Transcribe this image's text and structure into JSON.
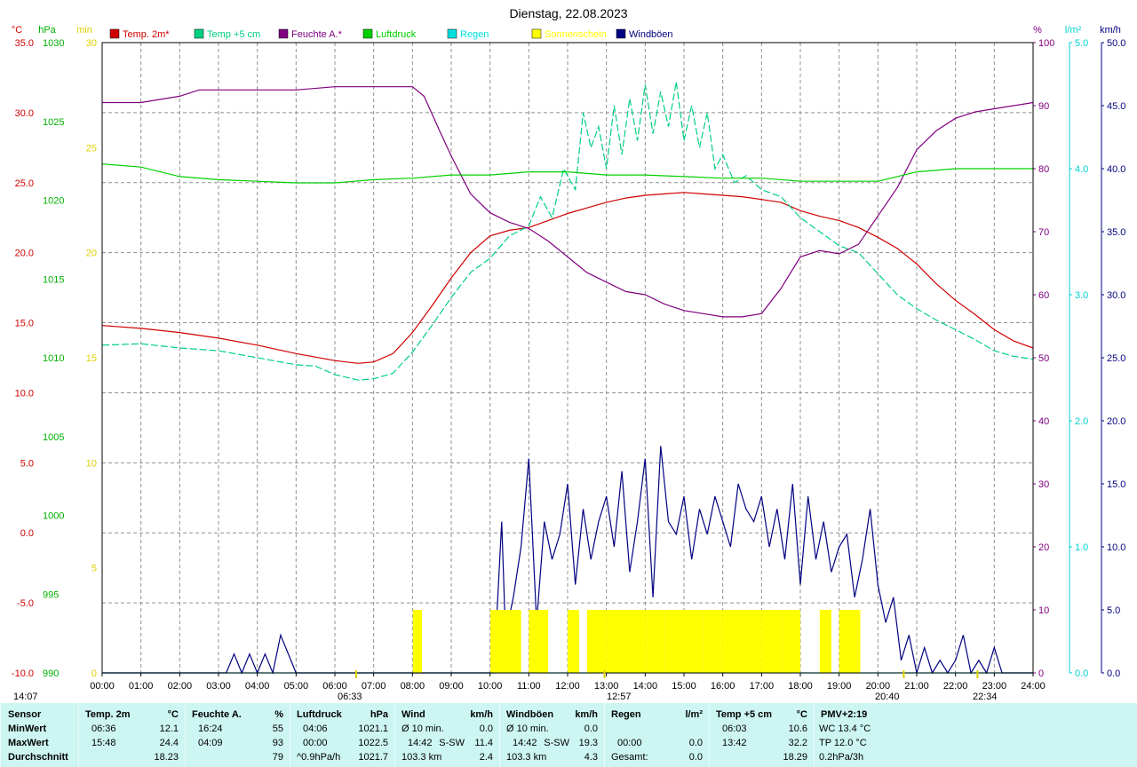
{
  "chart_data": {
    "type": "line",
    "title": "Dienstag, 22.08.2023",
    "x_ticks": [
      "00:00",
      "01:00",
      "02:00",
      "03:00",
      "04:00",
      "05:00",
      "06:00",
      "07:00",
      "08:00",
      "09:00",
      "10:00",
      "11:00",
      "12:00",
      "13:00",
      "14:00",
      "15:00",
      "16:00",
      "17:00",
      "18:00",
      "19:00",
      "20:00",
      "21:00",
      "22:00",
      "23:00",
      "24:00"
    ],
    "axes": {
      "temp": {
        "unit": "°C",
        "color": "#d00000",
        "min": -10,
        "max": 35,
        "ticks": [
          "35.0",
          "30.0",
          "25.0",
          "20.0",
          "15.0",
          "10.0",
          "5.0",
          "0.0",
          "-5.0",
          "-10.0"
        ]
      },
      "pressure": {
        "unit": "hPa",
        "color": "#00b000",
        "min": 990,
        "max": 1030,
        "ticks": [
          "1030",
          "1025",
          "1020",
          "1015",
          "1010",
          "1005",
          "1000",
          "995",
          "990"
        ]
      },
      "sunshine": {
        "unit": "min",
        "color": "#e0d000",
        "min": 0,
        "max": 30,
        "ticks": [
          "30",
          "25",
          "20",
          "15",
          "10",
          "5",
          "0"
        ]
      },
      "humidity": {
        "unit": "%",
        "color": "#800080",
        "min": 0,
        "max": 100,
        "ticks": [
          "100",
          "90",
          "80",
          "70",
          "60",
          "50",
          "40",
          "30",
          "20",
          "10",
          "0"
        ]
      },
      "rain": {
        "unit": "l/m²",
        "color": "#00d0d0",
        "min": 0,
        "max": 5,
        "ticks": [
          "5.0",
          "4.0",
          "3.0",
          "2.0",
          "1.0",
          "0.0"
        ]
      },
      "wind": {
        "unit": "km/h",
        "color": "#000080",
        "min": 0,
        "max": 50,
        "ticks": [
          "50.0",
          "45.0",
          "40.0",
          "35.0",
          "30.0",
          "25.0",
          "20.0",
          "15.0",
          "10.0",
          "5.0",
          "0.0"
        ]
      }
    },
    "legend": [
      {
        "name": "Temp. 2m*",
        "color": "#d00000"
      },
      {
        "name": "Temp +5 cm",
        "color": "#00d080"
      },
      {
        "name": "Feuchte A.*",
        "color": "#800080"
      },
      {
        "name": "Luftdruck",
        "color": "#00d000"
      },
      {
        "name": "Regen",
        "color": "#00e0e0"
      },
      {
        "name": "Sonnenschein",
        "color": "#ffff00"
      },
      {
        "name": "Windböen",
        "color": "#000080"
      }
    ],
    "series": [
      {
        "name": "Temp. 2m*",
        "axis": "temp",
        "color": "#d00000",
        "x": [
          0,
          1,
          2,
          3,
          4,
          5,
          6,
          6.6,
          7,
          7.5,
          8,
          8.5,
          9,
          9.5,
          10,
          10.5,
          11,
          11.5,
          12,
          12.5,
          13,
          13.5,
          14,
          14.5,
          15,
          15.5,
          16,
          16.5,
          17,
          17.5,
          18,
          18.5,
          19,
          19.5,
          20,
          20.5,
          21,
          21.5,
          22,
          22.5,
          23,
          23.5,
          24
        ],
        "values": [
          14.8,
          14.6,
          14.3,
          13.9,
          13.4,
          12.8,
          12.3,
          12.1,
          12.2,
          12.8,
          14.3,
          16.2,
          18.2,
          20.0,
          21.2,
          21.6,
          21.8,
          22.3,
          22.8,
          23.2,
          23.6,
          23.9,
          24.1,
          24.2,
          24.3,
          24.2,
          24.1,
          24.0,
          23.8,
          23.6,
          23.0,
          22.6,
          22.3,
          21.8,
          21.1,
          20.3,
          19.2,
          17.8,
          16.6,
          15.6,
          14.5,
          13.7,
          13.2
        ]
      },
      {
        "name": "Temp +5 cm",
        "axis": "temp",
        "color": "#00d080",
        "x": [
          0,
          1,
          2,
          3,
          4,
          5,
          5.5,
          6,
          6.6,
          7,
          7.5,
          8,
          8.5,
          9,
          9.5,
          10,
          10.5,
          11,
          11.3,
          11.6,
          11.9,
          12.2,
          12.4,
          12.6,
          12.8,
          13,
          13.2,
          13.4,
          13.6,
          13.8,
          14,
          14.2,
          14.4,
          14.6,
          14.8,
          15,
          15.2,
          15.4,
          15.6,
          15.8,
          16,
          16.3,
          16.6,
          17,
          17.5,
          18,
          18.5,
          19,
          19.5,
          20,
          20.5,
          21,
          21.5,
          22,
          22.5,
          23,
          23.5,
          24
        ],
        "values": [
          13.4,
          13.5,
          13.2,
          13.0,
          12.5,
          12.0,
          11.9,
          11.3,
          10.9,
          11.0,
          11.4,
          12.9,
          14.8,
          16.8,
          18.6,
          19.6,
          21.2,
          21.9,
          24.0,
          22.5,
          26.0,
          24.5,
          30.0,
          27.5,
          29.0,
          26.0,
          30.5,
          27.0,
          31.0,
          28.0,
          32.0,
          28.5,
          31.5,
          29.0,
          32.2,
          28.0,
          30.5,
          27.5,
          30.0,
          26.0,
          27.0,
          25.0,
          25.5,
          24.5,
          24.0,
          22.5,
          21.5,
          20.5,
          20.0,
          18.5,
          17.0,
          16.0,
          15.2,
          14.5,
          13.8,
          13.0,
          12.6,
          12.4
        ]
      },
      {
        "name": "Feuchte A.*",
        "axis": "humidity",
        "color": "#800080",
        "x": [
          0,
          1,
          2,
          2.5,
          3,
          4,
          5,
          6,
          7,
          8,
          8.3,
          8.7,
          9,
          9.5,
          10,
          10.5,
          11,
          11.5,
          12,
          12.5,
          13,
          13.5,
          14,
          14.5,
          15,
          15.5,
          16,
          16.5,
          17,
          17.5,
          18,
          18.5,
          19,
          19.5,
          20,
          20.5,
          21,
          21.5,
          22,
          22.5,
          23,
          23.5,
          24
        ],
        "values": [
          90.5,
          90.5,
          91.5,
          92.5,
          92.5,
          92.5,
          92.5,
          93.0,
          93.0,
          93.0,
          91.5,
          86.0,
          82.0,
          76.0,
          73.0,
          71.5,
          70.5,
          68.5,
          66.0,
          63.5,
          62.0,
          60.5,
          60.0,
          58.5,
          57.5,
          57.0,
          56.5,
          56.5,
          57.0,
          61.0,
          66.0,
          67.0,
          66.5,
          68.0,
          72.5,
          77.0,
          83.0,
          86.0,
          88.0,
          89.0,
          89.5,
          90.0,
          90.5
        ]
      },
      {
        "name": "Luftdruck",
        "axis": "pressure",
        "color": "#00d000",
        "x": [
          0,
          1,
          2,
          3,
          4,
          5,
          6,
          7,
          8,
          9,
          10,
          11,
          12,
          13,
          14,
          15,
          16,
          17,
          18,
          19,
          20,
          20.5,
          21,
          22,
          23,
          24
        ],
        "values": [
          1022.3,
          1022.1,
          1021.5,
          1021.3,
          1021.2,
          1021.1,
          1021.1,
          1021.3,
          1021.4,
          1021.6,
          1021.6,
          1021.8,
          1021.8,
          1021.6,
          1021.6,
          1021.5,
          1021.4,
          1021.4,
          1021.2,
          1021.2,
          1021.2,
          1021.5,
          1021.8,
          1022.0,
          1022.0,
          1022.0
        ]
      },
      {
        "name": "Regen",
        "axis": "rain",
        "color": "#00e0e0",
        "x": [
          0,
          24
        ],
        "values": [
          0,
          0
        ]
      },
      {
        "name": "Windböen",
        "axis": "wind",
        "color": "#000080",
        "x": [
          0,
          3.2,
          3.4,
          3.6,
          3.8,
          4.0,
          4.2,
          4.4,
          4.6,
          5,
          9,
          10.1,
          10.3,
          10.4,
          10.6,
          10.8,
          11.0,
          11.2,
          11.4,
          11.6,
          11.8,
          12.0,
          12.2,
          12.4,
          12.6,
          12.8,
          13.0,
          13.2,
          13.4,
          13.6,
          13.8,
          14.0,
          14.2,
          14.4,
          14.6,
          14.8,
          15.0,
          15.2,
          15.4,
          15.6,
          15.8,
          16.0,
          16.2,
          16.4,
          16.6,
          16.8,
          17.0,
          17.2,
          17.4,
          17.6,
          17.8,
          18.0,
          18.2,
          18.4,
          18.6,
          18.8,
          19.0,
          19.2,
          19.4,
          19.6,
          19.8,
          20.0,
          20.2,
          20.4,
          20.6,
          20.8,
          21.0,
          21.2,
          21.4,
          21.6,
          21.8,
          22.0,
          22.2,
          22.4,
          22.6,
          22.8,
          23.0,
          23.2,
          23.4,
          24
        ],
        "values": [
          0,
          0,
          1.5,
          0,
          1.5,
          0,
          1.5,
          0,
          3,
          0,
          0,
          0,
          12,
          3,
          6,
          10,
          17,
          4,
          12,
          9,
          11,
          15,
          7,
          13,
          9,
          12,
          14,
          10,
          16,
          8,
          12,
          17,
          6,
          18,
          12,
          11,
          14,
          9,
          13,
          11,
          14,
          12,
          10,
          15,
          13,
          12,
          14,
          10,
          13,
          9,
          15,
          7,
          14,
          9,
          12,
          8,
          10,
          11,
          6,
          9,
          13,
          7,
          4,
          6,
          1,
          3,
          0,
          2,
          0,
          1,
          0,
          1,
          3,
          0,
          1,
          0,
          2,
          0,
          0,
          0
        ]
      },
      {
        "name": "Sonnenschein",
        "axis": "sunshine",
        "color": "#ffff00",
        "x": [
          0,
          8.0,
          8.01,
          8.2,
          8.21,
          10.0,
          10.01,
          10.5,
          10.8,
          11.0,
          11.3,
          11.5,
          12.0,
          12.3,
          12.5,
          13.0,
          13.5,
          14.0,
          14.5,
          15.0,
          15.5,
          16.0,
          16.5,
          17.0,
          17.5,
          18.0,
          18.5,
          18.8,
          19.0,
          19.5,
          19.51,
          24
        ],
        "values": [
          0,
          0,
          3,
          3,
          0,
          0,
          3,
          3,
          0,
          3,
          3,
          0,
          3,
          0,
          3,
          3,
          3,
          3,
          3,
          3,
          3,
          3,
          3,
          3,
          3,
          0,
          3,
          0,
          3,
          3,
          0,
          0
        ]
      }
    ],
    "axis_markers": [
      {
        "label": "14:07",
        "x_time": "14:07"
      },
      {
        "label": "06:33",
        "x_time": "06:33"
      },
      {
        "label": "12:57",
        "x_time": "12:57"
      },
      {
        "label": "20:40",
        "x_time": "20:40"
      },
      {
        "label": "22:34",
        "x_time": "22:34"
      }
    ]
  },
  "stats": {
    "columns": [
      {
        "header": "Sensor",
        "unit": "",
        "rows": [
          {
            "a": "MinWert",
            "b": "",
            "c": ""
          },
          {
            "a": "MaxWert",
            "b": "",
            "c": ""
          },
          {
            "a": "Durchschnitt",
            "b": "",
            "c": ""
          }
        ]
      },
      {
        "header": "Temp. 2m",
        "unit": "°C",
        "rows": [
          {
            "a": "06:36",
            "b": "",
            "c": "12.1"
          },
          {
            "a": "15:48",
            "b": "",
            "c": "24.4"
          },
          {
            "a": "",
            "b": "",
            "c": "18.23"
          }
        ]
      },
      {
        "header": "Feuchte A.",
        "unit": "%",
        "rows": [
          {
            "a": "16:24",
            "b": "",
            "c": "55"
          },
          {
            "a": "04:09",
            "b": "",
            "c": "93"
          },
          {
            "a": "",
            "b": "",
            "c": "79"
          }
        ]
      },
      {
        "header": "Luftdruck",
        "unit": "hPa",
        "rows": [
          {
            "a": "04:06",
            "b": "",
            "c": "1021.1"
          },
          {
            "a": "00:00",
            "b": "",
            "c": "1022.5"
          },
          {
            "a": "^0.9hPa/h",
            "b": "",
            "c": "1021.7"
          }
        ]
      },
      {
        "header": "Wind",
        "unit": "km/h",
        "rows": [
          {
            "a": "Ø 10 min.",
            "b": "",
            "c": "0.0"
          },
          {
            "a": "14:42",
            "b": "S-SW",
            "c": "11.4"
          },
          {
            "a": "103.3 km",
            "b": "",
            "c": "2.4"
          }
        ]
      },
      {
        "header": "Windböen",
        "unit": "km/h",
        "rows": [
          {
            "a": "Ø 10 min.",
            "b": "",
            "c": "0.0"
          },
          {
            "a": "14:42",
            "b": "S-SW",
            "c": "19.3"
          },
          {
            "a": "103.3 km",
            "b": "",
            "c": "4.3"
          }
        ]
      },
      {
        "header": "Regen",
        "unit": "l/m²",
        "rows": [
          {
            "a": "",
            "b": "",
            "c": ""
          },
          {
            "a": "00:00",
            "b": "",
            "c": "0.0"
          },
          {
            "a": "Gesamt:",
            "b": "",
            "c": "0.0"
          }
        ]
      },
      {
        "header": "Temp +5 cm",
        "unit": "°C",
        "rows": [
          {
            "a": "06:03",
            "b": "",
            "c": "10.6"
          },
          {
            "a": "13:42",
            "b": "",
            "c": "32.2"
          },
          {
            "a": "",
            "b": "",
            "c": "18.29"
          }
        ]
      },
      {
        "header": "PMV+2:19",
        "unit": "",
        "rows": [
          {
            "a": "WC 13.4 °C",
            "b": "",
            "c": ""
          },
          {
            "a": "TP 12.0 °C",
            "b": "",
            "c": ""
          },
          {
            "a": "0.2hPa/3h",
            "b": "",
            "c": ""
          }
        ]
      }
    ]
  }
}
